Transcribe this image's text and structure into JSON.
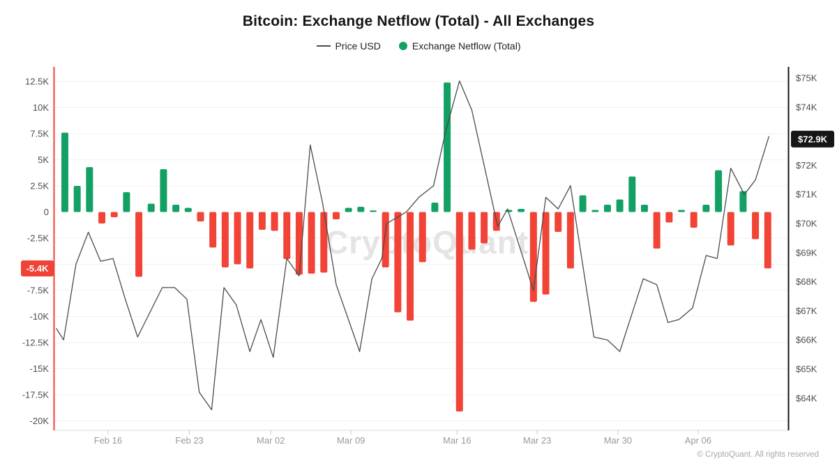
{
  "title": "Bitcoin: Exchange Netflow (Total) - All Exchanges",
  "legend": {
    "price_label": "Price USD",
    "netflow_label": "Exchange Netflow (Total)"
  },
  "watermark": "CryptoQuant",
  "footer": "© CryptoQuant. All rights reserved",
  "badges": {
    "netflow": {
      "text": "-5.4K",
      "value": -5.4,
      "bg": "#ef4337",
      "fg": "#ffffff"
    },
    "price": {
      "text": "$72.9K",
      "value": 72.9,
      "bg": "#161616",
      "fg": "#ffffff"
    }
  },
  "colors": {
    "netflow_positive": "#12a064",
    "netflow_negative": "#f14336",
    "price_line": "#4a4a4a",
    "left_axis_line": "#f14336",
    "right_axis_line": "#161616",
    "grid": "#f1f1f1",
    "axis_text": "#4d4d4d",
    "x_text": "#999999",
    "tick_mark": "#c9c9c9",
    "baseline": "#e6e6e6",
    "watermark": "#e4e4e4"
  },
  "chart_data": {
    "type": [
      "bar",
      "line"
    ],
    "title": "Bitcoin: Exchange Netflow (Total) - All Exchanges",
    "series_names": [
      "Exchange Netflow (Total)",
      "Price USD"
    ],
    "left_axis": {
      "unit": "BTC netflow (K)",
      "ticks": [
        {
          "label": "12.5K",
          "value": 12.5
        },
        {
          "label": "10K",
          "value": 10
        },
        {
          "label": "7.5K",
          "value": 7.5
        },
        {
          "label": "5K",
          "value": 5
        },
        {
          "label": "2.5K",
          "value": 2.5
        },
        {
          "label": "0",
          "value": 0
        },
        {
          "label": "-2.5K",
          "value": -2.5
        },
        {
          "label": "-7.5K",
          "value": -7.5
        },
        {
          "label": "-10K",
          "value": -10
        },
        {
          "label": "-12.5K",
          "value": -12.5
        },
        {
          "label": "-15K",
          "value": -15
        },
        {
          "label": "-17.5K",
          "value": -17.5
        },
        {
          "label": "-20K",
          "value": -20
        }
      ],
      "grid_values": [
        12.5,
        10,
        7.5,
        5,
        2.5,
        -2.5,
        -5,
        -7.5,
        -10,
        -12.5,
        -15,
        -17.5,
        -20
      ],
      "highlight_badge": "-5.4K"
    },
    "right_axis": {
      "unit": "Price USD (K)",
      "ticks": [
        {
          "label": "$75K",
          "value": 75
        },
        {
          "label": "$74K",
          "value": 74
        },
        {
          "label": "$72K",
          "value": 72
        },
        {
          "label": "$71K",
          "value": 71
        },
        {
          "label": "$70K",
          "value": 70
        },
        {
          "label": "$69K",
          "value": 69
        },
        {
          "label": "$68K",
          "value": 68
        },
        {
          "label": "$67K",
          "value": 67
        },
        {
          "label": "$66K",
          "value": 66
        },
        {
          "label": "$65K",
          "value": 65
        },
        {
          "label": "$64K",
          "value": 64
        }
      ],
      "highlight_badge": "$72.9K"
    },
    "x_ticks": [
      {
        "pos": 3.5,
        "label": "Feb 16"
      },
      {
        "pos": 10.1,
        "label": "Feb 23"
      },
      {
        "pos": 16.7,
        "label": "Mar 02"
      },
      {
        "pos": 23.2,
        "label": "Mar 09"
      },
      {
        "pos": 31.8,
        "label": "Mar 16"
      },
      {
        "pos": 38.3,
        "label": "Mar 23"
      },
      {
        "pos": 44.85,
        "label": "Mar 30"
      },
      {
        "pos": 51.35,
        "label": "Apr 06"
      }
    ],
    "netflow_bars": {
      "name": "Exchange Netflow (Total)",
      "unit": "K",
      "values": [
        7.6,
        2.5,
        4.3,
        -1.1,
        -0.5,
        1.9,
        -6.2,
        0.8,
        4.1,
        0.7,
        0.4,
        -0.9,
        -3.4,
        -5.3,
        -5.0,
        -5.4,
        -1.7,
        -1.8,
        -4.5,
        -6.0,
        -5.9,
        -5.8,
        -0.7,
        0.4,
        0.5,
        0.15,
        -5.3,
        -9.6,
        -10.4,
        -4.8,
        0.9,
        12.4,
        -19.1,
        -3.6,
        -3.0,
        -1.8,
        0.2,
        0.3,
        -8.6,
        -7.9,
        -1.9,
        -5.4,
        1.6,
        0.2,
        0.7,
        1.2,
        3.4,
        0.7,
        -3.5,
        -1.0,
        0.2,
        -1.5,
        0.7,
        4.0,
        -3.2,
        2.0,
        -2.6,
        -5.4
      ]
    },
    "price_usd": {
      "name": "Price USD",
      "unit": "K USD",
      "points": [
        [
          -0.7,
          66.4
        ],
        [
          -0.1,
          66.0
        ],
        [
          0.9,
          68.6
        ],
        [
          1.9,
          69.7
        ],
        [
          2.9,
          68.7
        ],
        [
          3.9,
          68.8
        ],
        [
          4.9,
          67.4
        ],
        [
          5.9,
          66.1
        ],
        [
          7.9,
          67.8
        ],
        [
          8.9,
          67.8
        ],
        [
          9.9,
          67.4
        ],
        [
          10.9,
          64.2
        ],
        [
          11.9,
          63.6
        ],
        [
          12.9,
          67.8
        ],
        [
          13.9,
          67.2
        ],
        [
          15.0,
          65.6
        ],
        [
          15.9,
          66.7
        ],
        [
          16.9,
          65.4
        ],
        [
          18.0,
          68.8
        ],
        [
          19.0,
          68.2
        ],
        [
          19.9,
          72.7
        ],
        [
          20.9,
          70.7
        ],
        [
          22.0,
          67.9
        ],
        [
          23.9,
          65.6
        ],
        [
          24.9,
          68.1
        ],
        [
          25.7,
          68.8
        ],
        [
          26.1,
          70.0
        ],
        [
          27.7,
          70.4
        ],
        [
          28.7,
          70.9
        ],
        [
          29.9,
          71.3
        ],
        [
          30.9,
          73.2
        ],
        [
          32.0,
          74.9
        ],
        [
          33.0,
          73.9
        ],
        [
          35.1,
          69.9
        ],
        [
          35.9,
          70.5
        ],
        [
          38.0,
          67.7
        ],
        [
          39.0,
          70.9
        ],
        [
          40.0,
          70.5
        ],
        [
          41.0,
          71.3
        ],
        [
          42.9,
          66.1
        ],
        [
          44.0,
          66.0
        ],
        [
          45.0,
          65.6
        ],
        [
          46.9,
          68.1
        ],
        [
          48.0,
          67.9
        ],
        [
          48.9,
          66.6
        ],
        [
          49.8,
          66.7
        ],
        [
          50.9,
          67.1
        ],
        [
          52.0,
          68.9
        ],
        [
          52.9,
          68.8
        ],
        [
          54.0,
          71.9
        ],
        [
          55.1,
          71.0
        ],
        [
          56.0,
          71.5
        ],
        [
          57.1,
          73.0
        ]
      ]
    }
  }
}
